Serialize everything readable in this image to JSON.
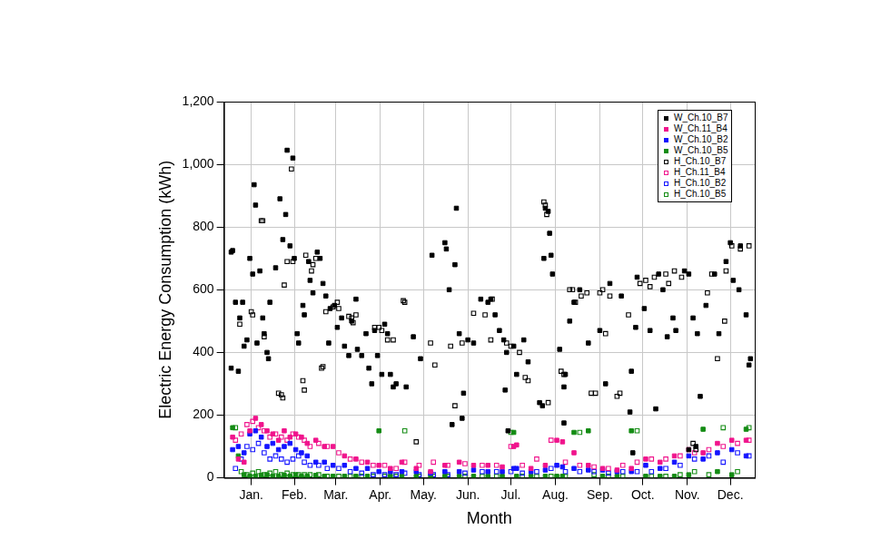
{
  "chart_data": {
    "type": "scatter",
    "x_label": "Month",
    "y_label": "Electric Energy Consumption (kWh)",
    "xlim": [
      -4,
      366
    ],
    "xticks": [
      {
        "value": 15,
        "label": "Jan."
      },
      {
        "value": 45,
        "label": "Feb."
      },
      {
        "value": 74,
        "label": "Mar."
      },
      {
        "value": 105,
        "label": "Apr."
      },
      {
        "value": 135,
        "label": "May."
      },
      {
        "value": 166,
        "label": "Jun."
      },
      {
        "value": 196,
        "label": "Jul."
      },
      {
        "value": 227,
        "label": "Aug."
      },
      {
        "value": 258,
        "label": "Sep."
      },
      {
        "value": 288,
        "label": "Oct."
      },
      {
        "value": 319,
        "label": "Nov."
      },
      {
        "value": 349,
        "label": "Dec."
      }
    ],
    "ylim": [
      0,
      1200
    ],
    "yticks": [
      0,
      200,
      400,
      600,
      800,
      {
        "value": 1000,
        "label": "1,000"
      },
      {
        "value": 1200,
        "label": "1,200"
      }
    ],
    "grid": true,
    "legend": "upper right",
    "series": [
      {
        "name": "W_Ch.10_B7",
        "color": "#000000",
        "marker": "square",
        "x": [
          1,
          2,
          1,
          4,
          6,
          7,
          9,
          10,
          12,
          14,
          16,
          17,
          18,
          19,
          21,
          23,
          24,
          26,
          27,
          28,
          32,
          35,
          37,
          39,
          40,
          42,
          44,
          45,
          47,
          48,
          51,
          52,
          55,
          56,
          58,
          61,
          63,
          65,
          67,
          69,
          70,
          73,
          75,
          78,
          80,
          83,
          85,
          88,
          89,
          92,
          95,
          97,
          99,
          101,
          103,
          106,
          108,
          110,
          112,
          114,
          116,
          123,
          128,
          133,
          141,
          150,
          151,
          153,
          157,
          158,
          155,
          160,
          162,
          163,
          166,
          170,
          175,
          180,
          182,
          185,
          188,
          191,
          193,
          192,
          194,
          198,
          200,
          205,
          208,
          216,
          218,
          219,
          220,
          222,
          223,
          224,
          225,
          230,
          233,
          233,
          234,
          237,
          240,
          244,
          250,
          258,
          262,
          265,
          273,
          280,
          279,
          281,
          283,
          284,
          289,
          293,
          299,
          297,
          302,
          305,
          309,
          311,
          317,
          320,
          323,
          326,
          320,
          325,
          328,
          332,
          338,
          341,
          346,
          349,
          351,
          355,
          356,
          360,
          362,
          363
        ],
        "values": [
          720,
          725,
          350,
          560,
          340,
          510,
          560,
          420,
          440,
          700,
          650,
          935,
          870,
          430,
          660,
          510,
          460,
          400,
          380,
          560,
          670,
          890,
          760,
          840,
          1045,
          740,
          1020,
          700,
          460,
          430,
          550,
          520,
          690,
          630,
          590,
          720,
          700,
          620,
          580,
          430,
          540,
          550,
          480,
          510,
          420,
          390,
          500,
          570,
          410,
          390,
          460,
          350,
          300,
          470,
          390,
          330,
          490,
          460,
          330,
          290,
          300,
          290,
          450,
          380,
          710,
          750,
          730,
          600,
          680,
          860,
          170,
          460,
          190,
          270,
          440,
          430,
          570,
          560,
          570,
          520,
          470,
          440,
          400,
          280,
          150,
          420,
          330,
          440,
          370,
          240,
          230,
          700,
          860,
          850,
          780,
          710,
          650,
          410,
          290,
          175,
          330,
          500,
          560,
          600,
          430,
          470,
          300,
          620,
          580,
          340,
          210,
          80,
          480,
          640,
          540,
          470,
          650,
          220,
          600,
          450,
          510,
          470,
          660,
          650,
          510,
          460,
          90,
          100,
          260,
          550,
          650,
          460,
          690,
          750,
          630,
          600,
          740,
          520,
          360,
          380
        ]
      },
      {
        "name": "W_Ch.11_B4",
        "color": "#f0148c",
        "marker": "square",
        "x": [
          2,
          6,
          10,
          14,
          18,
          22,
          26,
          30,
          34,
          38,
          42,
          46,
          50,
          54,
          60,
          66,
          72,
          80,
          88,
          96,
          104,
          112,
          120,
          130,
          140,
          150,
          160,
          170,
          180,
          190,
          198,
          200,
          210,
          220,
          228,
          232,
          240,
          250,
          260,
          270,
          280,
          290,
          300,
          310,
          320,
          330,
          340,
          350,
          360
        ],
        "values": [
          130,
          60,
          50,
          150,
          190,
          170,
          150,
          140,
          120,
          150,
          130,
          140,
          130,
          110,
          120,
          100,
          100,
          70,
          60,
          50,
          40,
          30,
          50,
          30,
          20,
          40,
          50,
          40,
          40,
          35,
          100,
          105,
          30,
          40,
          120,
          115,
          80,
          40,
          30,
          25,
          30,
          60,
          50,
          70,
          90,
          80,
          110,
          120,
          120
        ]
      },
      {
        "name": "W_Ch.10_B2",
        "color": "#1414ff",
        "marker": "square",
        "x": [
          2,
          6,
          10,
          14,
          18,
          22,
          26,
          30,
          34,
          38,
          42,
          46,
          50,
          54,
          60,
          66,
          72,
          80,
          88,
          96,
          104,
          112,
          120,
          130,
          140,
          150,
          160,
          170,
          180,
          190,
          198,
          200,
          210,
          220,
          228,
          232,
          240,
          250,
          260,
          270,
          280,
          290,
          300,
          310,
          320,
          330,
          340,
          350,
          360
        ],
        "values": [
          90,
          100,
          80,
          140,
          150,
          130,
          100,
          110,
          90,
          100,
          110,
          90,
          80,
          70,
          50,
          50,
          40,
          40,
          30,
          30,
          20,
          20,
          20,
          20,
          15,
          20,
          20,
          25,
          20,
          20,
          30,
          30,
          20,
          25,
          40,
          35,
          30,
          25,
          25,
          20,
          20,
          40,
          30,
          50,
          70,
          60,
          80,
          90,
          70
        ]
      },
      {
        "name": "W_Ch.10_B5",
        "color": "#148c14",
        "marker": "square",
        "x": [
          2,
          6,
          10,
          14,
          18,
          22,
          26,
          30,
          34,
          38,
          42,
          46,
          50,
          54,
          60,
          66,
          72,
          80,
          88,
          96,
          104,
          112,
          120,
          130,
          140,
          150,
          160,
          170,
          180,
          190,
          198,
          200,
          210,
          220,
          228,
          232,
          240,
          250,
          260,
          270,
          280,
          290,
          300,
          310,
          320,
          330,
          340,
          350,
          360
        ],
        "values": [
          160,
          70,
          10,
          5,
          5,
          8,
          10,
          5,
          5,
          8,
          5,
          10,
          5,
          5,
          8,
          5,
          5,
          5,
          5,
          5,
          150,
          5,
          5,
          5,
          5,
          5,
          5,
          5,
          5,
          5,
          145,
          5,
          5,
          5,
          5,
          5,
          145,
          150,
          5,
          5,
          150,
          5,
          5,
          5,
          10,
          155,
          20,
          10,
          155
        ]
      },
      {
        "name": "H_Ch.10_B7",
        "color": "#000000",
        "marker": "square_open",
        "x": [
          7,
          15,
          16,
          22,
          23,
          24,
          34,
          36,
          37,
          38,
          40,
          43,
          44,
          51,
          52,
          53,
          57,
          58,
          60,
          64,
          65,
          67,
          72,
          75,
          76,
          83,
          85,
          86,
          88,
          101,
          104,
          106,
          110,
          114,
          121,
          122,
          130,
          140,
          143,
          154,
          157,
          162,
          170,
          178,
          182,
          183,
          193,
          196,
          202,
          206,
          208,
          219,
          220,
          221,
          222,
          231,
          233,
          237,
          239,
          241,
          245,
          249,
          252,
          255,
          258,
          260,
          262,
          265,
          270,
          272,
          278,
          286,
          290,
          293,
          296,
          304,
          306,
          310,
          315,
          323,
          325,
          333,
          336,
          345,
          340,
          350,
          356,
          362,
          346
        ],
        "values": [
          490,
          530,
          520,
          820,
          820,
          450,
          270,
          265,
          255,
          615,
          690,
          985,
          690,
          310,
          280,
          710,
          660,
          680,
          700,
          350,
          355,
          530,
          545,
          560,
          540,
          515,
          510,
          495,
          520,
          480,
          480,
          470,
          440,
          440,
          565,
          560,
          115,
          430,
          360,
          420,
          230,
          430,
          525,
          520,
          440,
          570,
          430,
          420,
          400,
          320,
          310,
          880,
          870,
          840,
          240,
          340,
          330,
          600,
          600,
          560,
          580,
          590,
          270,
          270,
          590,
          600,
          460,
          580,
          260,
          270,
          520,
          620,
          630,
          610,
          640,
          650,
          620,
          660,
          640,
          110,
          90,
          590,
          650,
          500,
          380,
          740,
          730,
          740,
          660
        ]
      },
      {
        "name": "H_Ch.11_B4",
        "color": "#f0148c",
        "marker": "square_open",
        "x": [
          4,
          8,
          12,
          16,
          20,
          24,
          28,
          32,
          36,
          40,
          44,
          48,
          52,
          56,
          62,
          68,
          76,
          84,
          92,
          100,
          108,
          116,
          122,
          132,
          142,
          152,
          164,
          176,
          186,
          196,
          204,
          214,
          224,
          234,
          244,
          254,
          264,
          274,
          284,
          294,
          304,
          314,
          324,
          334,
          344,
          354,
          362
        ],
        "values": [
          120,
          140,
          170,
          180,
          160,
          150,
          130,
          140,
          130,
          120,
          140,
          130,
          120,
          100,
          110,
          100,
          80,
          60,
          50,
          40,
          40,
          30,
          50,
          40,
          50,
          40,
          45,
          40,
          40,
          100,
          40,
          60,
          120,
          50,
          40,
          35,
          30,
          40,
          50,
          60,
          60,
          70,
          80,
          90,
          100,
          110,
          120
        ]
      },
      {
        "name": "H_Ch.10_B2",
        "color": "#1414ff",
        "marker": "square_open",
        "x": [
          4,
          8,
          12,
          16,
          20,
          24,
          28,
          32,
          36,
          40,
          44,
          48,
          52,
          56,
          62,
          68,
          76,
          84,
          92,
          100,
          108,
          116,
          122,
          132,
          142,
          152,
          164,
          176,
          186,
          196,
          204,
          214,
          224,
          234,
          244,
          254,
          264,
          274,
          284,
          294,
          304,
          314,
          324,
          334,
          344,
          354,
          362
        ],
        "values": [
          30,
          60,
          100,
          90,
          110,
          80,
          60,
          70,
          60,
          50,
          60,
          70,
          50,
          40,
          40,
          30,
          30,
          20,
          15,
          10,
          10,
          10,
          15,
          10,
          10,
          10,
          15,
          20,
          20,
          20,
          15,
          20,
          30,
          20,
          20,
          20,
          15,
          20,
          20,
          20,
          30,
          40,
          60,
          70,
          50,
          80,
          70
        ]
      },
      {
        "name": "H_Ch.10_B5",
        "color": "#148c14",
        "marker": "square_open",
        "x": [
          4,
          8,
          12,
          16,
          20,
          24,
          28,
          32,
          36,
          40,
          44,
          48,
          52,
          56,
          62,
          68,
          76,
          84,
          92,
          100,
          108,
          116,
          122,
          132,
          142,
          152,
          164,
          176,
          186,
          196,
          204,
          214,
          224,
          234,
          244,
          254,
          264,
          274,
          284,
          294,
          304,
          314,
          324,
          334,
          344,
          354,
          362
        ],
        "values": [
          160,
          20,
          10,
          15,
          20,
          10,
          15,
          20,
          10,
          15,
          10,
          10,
          10,
          10,
          10,
          5,
          5,
          5,
          5,
          5,
          5,
          5,
          150,
          5,
          5,
          5,
          5,
          5,
          5,
          145,
          5,
          5,
          5,
          5,
          145,
          10,
          5,
          5,
          150,
          5,
          5,
          10,
          20,
          10,
          160,
          20,
          160
        ]
      }
    ]
  }
}
